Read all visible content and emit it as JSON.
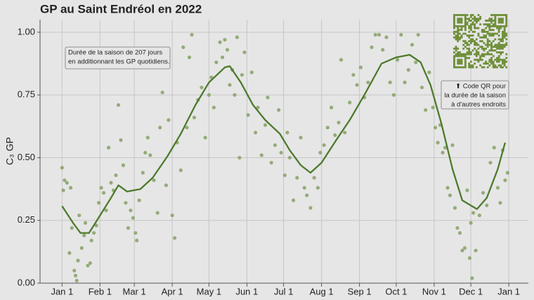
{
  "chart_data": {
    "type": "scatter",
    "title": "GP au Saint Endréol en 2022",
    "y_label": "C₃ GP",
    "xlim": [
      "2021-12-14",
      "2023-01-17"
    ],
    "xticks": [
      {
        "value": "2022-01-01",
        "label": "Jan 1"
      },
      {
        "value": "2022-02-01",
        "label": "Feb 1"
      },
      {
        "value": "2022-03-01",
        "label": "Mar 1"
      },
      {
        "value": "2022-04-01",
        "label": "Apr 1"
      },
      {
        "value": "2022-05-01",
        "label": "May 1"
      },
      {
        "value": "2022-06-01",
        "label": "Jun 1"
      },
      {
        "value": "2022-07-01",
        "label": "Jul 1"
      },
      {
        "value": "2022-08-01",
        "label": "Aug 1"
      },
      {
        "value": "2022-09-01",
        "label": "Sep 1"
      },
      {
        "value": "2022-10-01",
        "label": "Oct 1"
      },
      {
        "value": "2022-11-01",
        "label": "Nov 1"
      },
      {
        "value": "2022-12-01",
        "label": "Dec 1"
      },
      {
        "value": "2023-01-01",
        "label": "Jan 1"
      }
    ],
    "ylim": [
      0,
      1.05
    ],
    "yticks": [
      {
        "value": 0,
        "label": "0.00"
      },
      {
        "value": 0.25,
        "label": "0.25"
      },
      {
        "value": 0.5,
        "label": "0.50"
      },
      {
        "value": 0.75,
        "label": "0.75"
      },
      {
        "value": 1,
        "label": "1.00"
      }
    ],
    "grid": true,
    "series": [
      {
        "type": "scatter",
        "color": "#7f9c5e",
        "x": [
          "2022-01-01",
          "2022-01-02",
          "2022-01-03",
          "2022-01-05",
          "2022-01-07",
          "2022-01-08",
          "2022-01-09",
          "2022-01-11",
          "2022-01-12",
          "2022-01-13",
          "2022-01-14",
          "2022-01-15",
          "2022-01-17",
          "2022-01-19",
          "2022-01-20",
          "2022-01-22",
          "2022-01-24",
          "2022-01-25",
          "2022-01-27",
          "2022-01-29",
          "2022-01-31",
          "2022-02-02",
          "2022-02-04",
          "2022-02-06",
          "2022-02-08",
          "2022-02-10",
          "2022-02-12",
          "2022-02-14",
          "2022-02-16",
          "2022-02-18",
          "2022-02-20",
          "2022-02-22",
          "2022-02-24",
          "2022-02-26",
          "2022-02-28",
          "2022-03-02",
          "2022-03-03",
          "2022-03-05",
          "2022-03-08",
          "2022-03-10",
          "2022-03-12",
          "2022-03-14",
          "2022-03-17",
          "2022-03-20",
          "2022-03-22",
          "2022-03-24",
          "2022-03-27",
          "2022-03-29",
          "2022-04-01",
          "2022-04-03",
          "2022-04-05",
          "2022-04-08",
          "2022-04-10",
          "2022-04-13",
          "2022-04-15",
          "2022-04-17",
          "2022-04-19",
          "2022-04-22",
          "2022-04-25",
          "2022-04-28",
          "2022-05-01",
          "2022-05-03",
          "2022-05-05",
          "2022-05-07",
          "2022-05-10",
          "2022-05-12",
          "2022-05-14",
          "2022-05-16",
          "2022-05-18",
          "2022-05-20",
          "2022-05-22",
          "2022-05-24",
          "2022-05-26",
          "2022-05-28",
          "2022-05-30",
          "2022-06-02",
          "2022-06-05",
          "2022-06-08",
          "2022-06-10",
          "2022-06-13",
          "2022-06-16",
          "2022-06-18",
          "2022-06-21",
          "2022-06-24",
          "2022-06-27",
          "2022-06-29",
          "2022-07-02",
          "2022-07-04",
          "2022-07-06",
          "2022-07-09",
          "2022-07-12",
          "2022-07-15",
          "2022-07-18",
          "2022-07-20",
          "2022-07-23",
          "2022-07-26",
          "2022-07-29",
          "2022-07-31",
          "2022-08-03",
          "2022-08-06",
          "2022-08-09",
          "2022-08-12",
          "2022-08-15",
          "2022-08-17",
          "2022-08-20",
          "2022-08-24",
          "2022-08-27",
          "2022-08-30",
          "2022-09-02",
          "2022-09-05",
          "2022-09-08",
          "2022-09-11",
          "2022-09-14",
          "2022-09-17",
          "2022-09-20",
          "2022-09-23",
          "2022-09-26",
          "2022-09-29",
          "2022-10-02",
          "2022-10-05",
          "2022-10-08",
          "2022-10-11",
          "2022-10-14",
          "2022-10-17",
          "2022-10-19",
          "2022-10-22",
          "2022-10-25",
          "2022-10-28",
          "2022-10-31",
          "2022-11-02",
          "2022-11-04",
          "2022-11-06",
          "2022-11-08",
          "2022-11-10",
          "2022-11-12",
          "2022-11-14",
          "2022-11-16",
          "2022-11-18",
          "2022-11-20",
          "2022-11-22",
          "2022-11-24",
          "2022-11-26",
          "2022-11-28",
          "2022-11-30",
          "2022-12-01",
          "2022-12-02",
          "2022-12-03",
          "2022-12-05",
          "2022-12-08",
          "2022-12-11",
          "2022-12-14",
          "2022-12-17",
          "2022-12-20",
          "2022-12-23",
          "2022-12-25",
          "2022-12-27",
          "2022-12-29",
          "2022-12-31"
        ],
        "values": [
          0.46,
          0.37,
          0.41,
          0.4,
          0.12,
          0.38,
          0.22,
          0.05,
          0.03,
          0.01,
          0.09,
          0.27,
          0.14,
          0.19,
          0.24,
          0.07,
          0.08,
          0.17,
          0.2,
          0.23,
          0.32,
          0.38,
          0.36,
          0.29,
          0.54,
          0.4,
          0.37,
          0.43,
          0.71,
          0.57,
          0.47,
          0.32,
          0.22,
          0.29,
          0.26,
          0.2,
          0.17,
          0.33,
          0.44,
          0.52,
          0.58,
          0.51,
          0.41,
          0.28,
          0.62,
          0.76,
          0.39,
          0.65,
          0.27,
          0.18,
          0.56,
          0.45,
          0.94,
          0.62,
          0.9,
          0.99,
          0.66,
          0.73,
          0.78,
          0.58,
          0.75,
          0.82,
          0.7,
          0.88,
          0.96,
          0.9,
          0.97,
          0.93,
          0.79,
          0.85,
          0.75,
          0.98,
          0.5,
          0.83,
          0.92,
          0.67,
          0.84,
          0.6,
          0.7,
          0.51,
          0.63,
          0.74,
          0.48,
          0.55,
          0.69,
          0.52,
          0.43,
          0.6,
          0.5,
          0.33,
          0.42,
          0.58,
          0.38,
          0.35,
          0.3,
          0.42,
          0.38,
          0.52,
          0.55,
          0.62,
          0.7,
          0.59,
          0.64,
          0.89,
          0.6,
          0.72,
          0.83,
          0.79,
          0.86,
          0.74,
          0.8,
          0.94,
          0.99,
          0.99,
          0.93,
          0.98,
          0.8,
          0.75,
          0.89,
          0.99,
          0.8,
          0.85,
          0.95,
          0.88,
          0.99,
          0.78,
          0.69,
          0.84,
          0.7,
          0.62,
          0.56,
          0.63,
          0.52,
          0.54,
          0.38,
          0.35,
          0.55,
          0.3,
          0.22,
          0.2,
          0.13,
          0.14,
          0.37,
          0.1,
          0.24,
          0.02,
          0.28,
          0.13,
          0.27,
          0.36,
          0.31,
          0.48,
          0.54,
          0.38,
          0.32,
          0.53,
          0.41,
          0.44
        ]
      },
      {
        "type": "line",
        "color": "#4d7a2c",
        "x": [
          "2022-01-01",
          "2022-01-10",
          "2022-01-16",
          "2022-01-23",
          "2022-02-01",
          "2022-02-10",
          "2022-02-16",
          "2022-02-23",
          "2022-03-06",
          "2022-03-16",
          "2022-03-28",
          "2022-04-08",
          "2022-04-20",
          "2022-05-01",
          "2022-05-14",
          "2022-05-18",
          "2022-05-27",
          "2022-06-06",
          "2022-06-16",
          "2022-06-28",
          "2022-07-06",
          "2022-07-15",
          "2022-07-23",
          "2022-08-01",
          "2022-08-13",
          "2022-08-24",
          "2022-09-05",
          "2022-09-19",
          "2022-10-01",
          "2022-10-12",
          "2022-10-21",
          "2022-10-29",
          "2022-11-07",
          "2022-11-16",
          "2022-11-24",
          "2022-12-06",
          "2022-12-14",
          "2022-12-23",
          "2022-12-29"
        ],
        "values": [
          0.307,
          0.24,
          0.2,
          0.2,
          0.27,
          0.34,
          0.39,
          0.365,
          0.375,
          0.42,
          0.505,
          0.595,
          0.71,
          0.8,
          0.86,
          0.865,
          0.8,
          0.71,
          0.65,
          0.595,
          0.53,
          0.47,
          0.44,
          0.48,
          0.57,
          0.65,
          0.75,
          0.875,
          0.9,
          0.91,
          0.88,
          0.79,
          0.635,
          0.455,
          0.33,
          0.295,
          0.34,
          0.455,
          0.56
        ]
      }
    ],
    "annotations": [
      {
        "lines": [
          "Durée de la saison de 207 jours",
          "en additionnant les GP quotidiens."
        ]
      },
      {
        "lines": [
          "⬆ Code QR pour",
          "la durée de la saison",
          "à d'autres endroits"
        ]
      }
    ]
  }
}
